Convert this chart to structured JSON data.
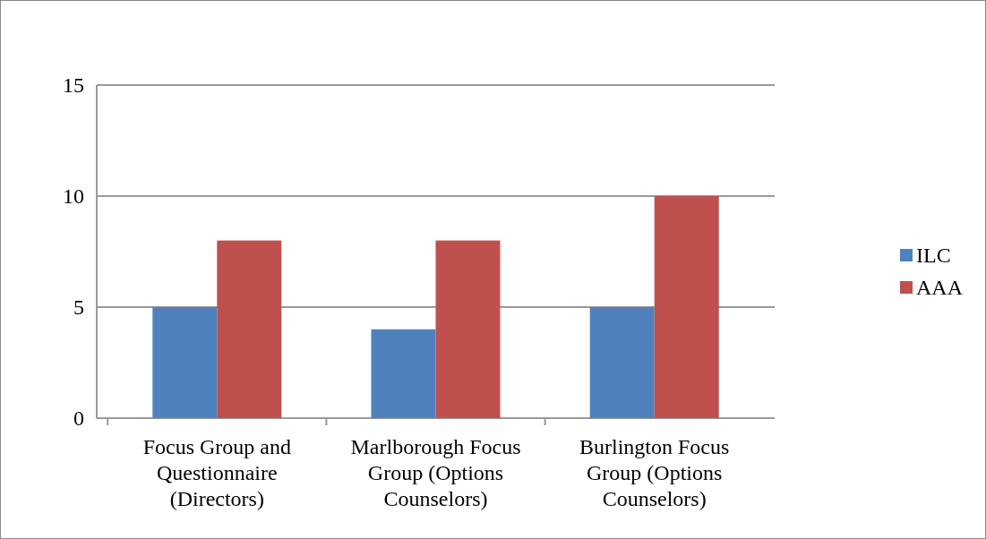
{
  "chart_data": {
    "type": "bar",
    "categories": [
      "Focus Group and Questionnaire (Directors)",
      "Marlborough Focus Group (Options Counselors)",
      "Burlington Focus Group (Options Counselors)"
    ],
    "series": [
      {
        "name": "ILC",
        "color": "#4f81bd",
        "values": [
          5,
          4,
          5
        ]
      },
      {
        "name": "AAA",
        "color": "#c0504d",
        "values": [
          8,
          8,
          10
        ]
      }
    ],
    "ylim": [
      0,
      15
    ],
    "yticks": [
      0,
      5,
      10,
      15
    ],
    "grid": "y",
    "legend": "right"
  }
}
